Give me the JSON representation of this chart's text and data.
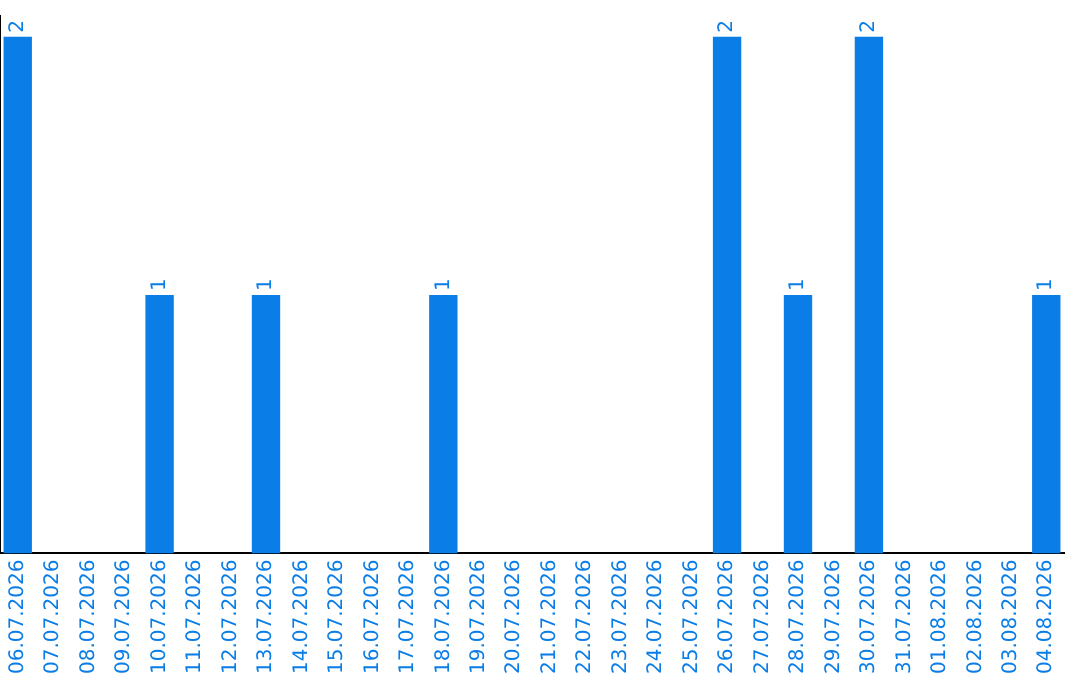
{
  "chart_data": {
    "type": "bar",
    "categories": [
      "06.07.2026",
      "07.07.2026",
      "08.07.2026",
      "09.07.2026",
      "10.07.2026",
      "11.07.2026",
      "12.07.2026",
      "13.07.2026",
      "14.07.2026",
      "15.07.2026",
      "16.07.2026",
      "17.07.2026",
      "18.07.2026",
      "19.07.2026",
      "20.07.2026",
      "21.07.2026",
      "22.07.2026",
      "23.07.2026",
      "24.07.2026",
      "25.07.2026",
      "26.07.2026",
      "27.07.2026",
      "28.07.2026",
      "29.07.2026",
      "30.07.2026",
      "31.07.2026",
      "01.08.2026",
      "02.08.2026",
      "03.08.2026",
      "04.08.2026"
    ],
    "values": [
      2,
      0,
      0,
      0,
      1,
      0,
      0,
      1,
      0,
      0,
      0,
      0,
      1,
      0,
      0,
      0,
      0,
      0,
      0,
      0,
      2,
      0,
      1,
      0,
      2,
      0,
      0,
      0,
      0,
      1
    ],
    "value_labels": [
      "2",
      null,
      null,
      null,
      "1",
      null,
      null,
      "1",
      null,
      null,
      null,
      null,
      "1",
      null,
      null,
      null,
      null,
      null,
      null,
      null,
      "2",
      null,
      "1",
      null,
      "2",
      null,
      null,
      null,
      null,
      "1"
    ],
    "color": "#0a7de6",
    "ylim": [
      0,
      2.08
    ],
    "tick_labels": "x",
    "grid": false,
    "legend": false
  }
}
